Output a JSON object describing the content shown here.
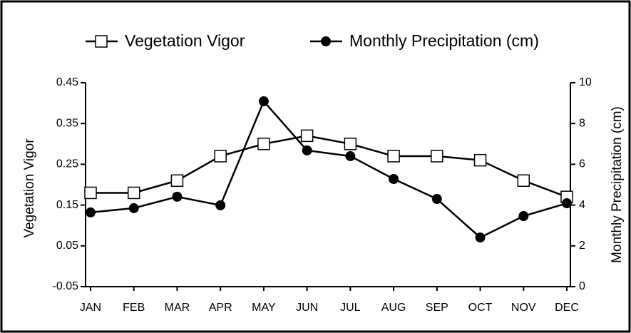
{
  "chart_data": {
    "type": "line",
    "categories": [
      "JAN",
      "FEB",
      "MAR",
      "APR",
      "MAY",
      "JUN",
      "JUL",
      "AUG",
      "SEP",
      "OCT",
      "NOV",
      "DEC"
    ],
    "y_label": "Vegetation Vigor",
    "y2_label": "Monthly Precipitation (cm)",
    "series": [
      {
        "name": "Vegetation Vigor",
        "color": "#000000",
        "marker": "square-open",
        "values": [
          0.18,
          0.18,
          0.21,
          0.27,
          0.3,
          0.32,
          0.3,
          0.27,
          0.27,
          0.26,
          0.21,
          0.17
        ]
      },
      {
        "name": "Monthly Precipitation (cm)",
        "color": "#000000",
        "marker": "circle-filled",
        "axis": "y2",
        "values": [
          3.64,
          3.85,
          4.41,
          3.99,
          9.09,
          6.68,
          6.4,
          5.28,
          4.3,
          2.41,
          3.46,
          4.09
        ]
      }
    ],
    "ylim": [
      -0.05,
      0.45
    ],
    "yticks": [
      -0.05,
      0.05,
      0.15,
      0.25,
      0.35,
      0.45
    ],
    "y2lim": [
      0,
      10
    ],
    "y2ticks": [
      0,
      2,
      4,
      6,
      8,
      10
    ],
    "legend": "top",
    "grid": false
  }
}
